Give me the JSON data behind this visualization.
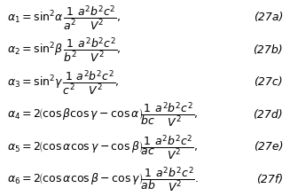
{
  "equations": [
    {
      "lhs": "\\alpha_1 = \\sin^2 \\alpha \\, \\frac{1}{a^2} \\frac{a^2 b^2 c^2}{V^2},",
      "label": "(27a)"
    },
    {
      "lhs": "\\alpha_2 = \\sin^2 \\beta \\, \\frac{1}{b^2} \\frac{a^2 b^2 c^2}{V^2},",
      "label": "(27b)"
    },
    {
      "lhs": "\\alpha_3 = \\sin^2 \\gamma \\, \\frac{1}{c^2} \\frac{a^2 b^2 c^2}{V^2},",
      "label": "(27c)"
    },
    {
      "lhs": "\\alpha_4 = 2\\Big(\\cos\\beta\\cos\\gamma - \\cos\\alpha\\Big)\\frac{1}{bc} \\frac{a^2 b^2 c^2}{V^2},",
      "label": "(27d)"
    },
    {
      "lhs": "\\alpha_5 = 2\\Big(\\cos\\alpha\\cos\\gamma - \\cos\\beta\\Big)\\frac{1}{ac} \\frac{a^2 b^2 c^2}{V^2},",
      "label": "(27e)"
    },
    {
      "lhs": "\\alpha_6 = 2\\Big(\\cos\\alpha\\cos\\beta - \\cos\\gamma\\Big)\\frac{1}{ab} \\frac{a^2 b^2 c^2}{V^2}.",
      "label": "(27f)"
    }
  ],
  "font_size": 9,
  "label_font_size": 9,
  "bg_color": "#ffffff",
  "text_color": "#000000"
}
